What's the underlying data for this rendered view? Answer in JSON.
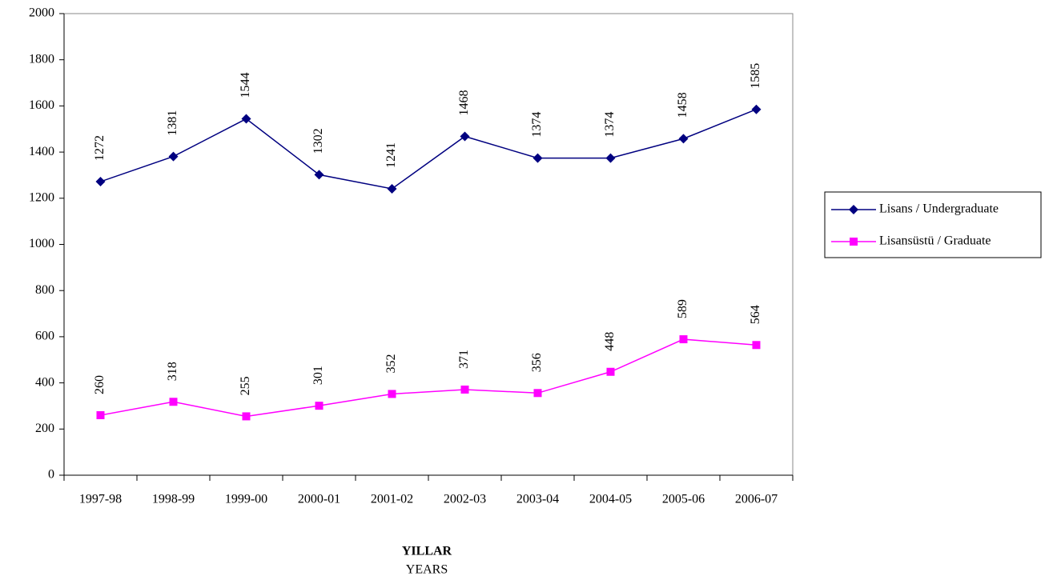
{
  "chart_data": {
    "type": "line",
    "categories": [
      "1997-98",
      "1998-99",
      "1999-00",
      "2000-01",
      "2001-02",
      "2002-03",
      "2003-04",
      "2004-05",
      "2005-06",
      "2006-07"
    ],
    "series": [
      {
        "name": "Lisans / Undergraduate",
        "color": "#000080",
        "marker": "diamond",
        "values": [
          1272,
          1381,
          1544,
          1302,
          1241,
          1468,
          1374,
          1374,
          1458,
          1585
        ]
      },
      {
        "name": "Lisansüstü / Graduate",
        "color": "#ff00ff",
        "marker": "square",
        "values": [
          260,
          318,
          255,
          301,
          352,
          371,
          356,
          448,
          589,
          564
        ]
      }
    ],
    "ylim": [
      0,
      2000
    ],
    "yticks": [
      0,
      200,
      400,
      600,
      800,
      1000,
      1200,
      1400,
      1600,
      1800,
      2000
    ],
    "xlabel": "YILLAR",
    "xlabel_sub": "YEARS",
    "legend": "right",
    "data_labels": true
  }
}
